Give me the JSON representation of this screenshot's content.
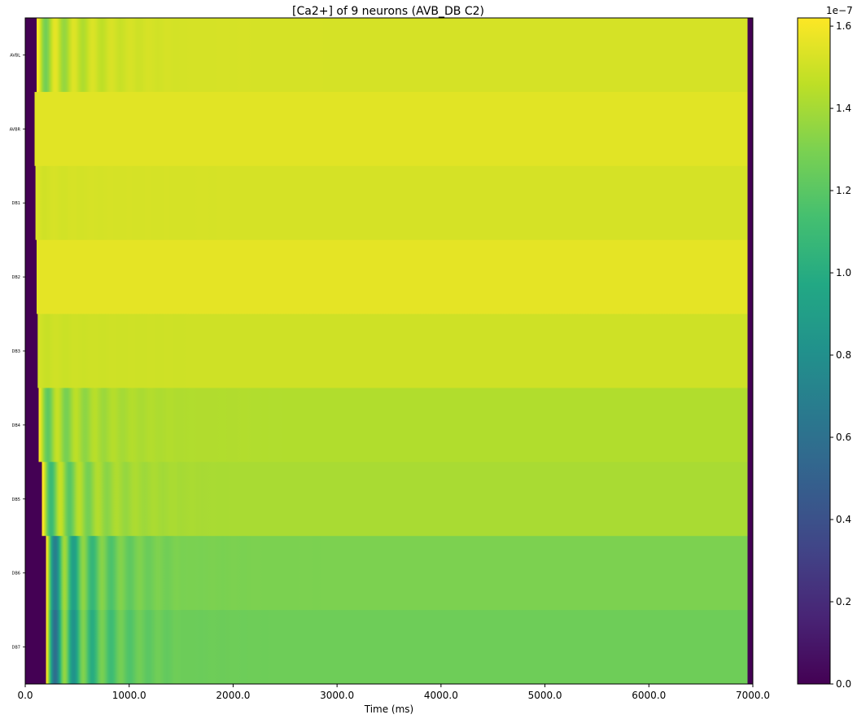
{
  "chart_data": {
    "type": "heatmap",
    "title": "[Ca2+] of 9 neurons (AVB_DB C2)",
    "xlabel": "Time (ms)",
    "ylabel": "",
    "xlim": [
      0,
      7000
    ],
    "x_ticks": [
      0,
      1000,
      2000,
      3000,
      4000,
      5000,
      6000,
      7000
    ],
    "x_tick_labels": [
      "0.0",
      "1000.0",
      "2000.0",
      "3000.0",
      "4000.0",
      "5000.0",
      "6000.0",
      "7000.0"
    ],
    "categories": [
      "AVBL",
      "AVBR",
      "DB1",
      "DB2",
      "DB3",
      "DB4",
      "DB5",
      "DB6",
      "DB7"
    ],
    "colormap": "viridis",
    "colorbar": {
      "range": [
        0.0,
        1.62
      ],
      "exponent_label": "1e−7",
      "ticks": [
        0.0,
        0.2,
        0.4,
        0.6,
        0.8,
        1.0,
        1.2,
        1.4,
        1.6
      ],
      "tick_labels": [
        "0.0",
        "0.2",
        "0.4",
        "0.6",
        "0.8",
        "1.0",
        "1.2",
        "1.4",
        "1.6"
      ]
    },
    "series": [
      {
        "name": "AVBL",
        "onset_ms": 110,
        "steady": 1.52,
        "peak": 1.62,
        "ringing": 0.35
      },
      {
        "name": "AVBR",
        "onset_ms": 90,
        "steady": 1.55,
        "peak": 1.55,
        "ringing": 0.0
      },
      {
        "name": "DB1",
        "onset_ms": 100,
        "steady": 1.52,
        "peak": 1.53,
        "ringing": 0.02
      },
      {
        "name": "DB2",
        "onset_ms": 110,
        "steady": 1.56,
        "peak": 1.56,
        "ringing": 0.0
      },
      {
        "name": "DB3",
        "onset_ms": 120,
        "steady": 1.5,
        "peak": 1.51,
        "ringing": 0.02
      },
      {
        "name": "DB4",
        "onset_ms": 130,
        "steady": 1.43,
        "peak": 1.55,
        "ringing": 0.3
      },
      {
        "name": "DB5",
        "onset_ms": 160,
        "steady": 1.41,
        "peak": 1.58,
        "ringing": 0.45
      },
      {
        "name": "DB6",
        "onset_ms": 200,
        "steady": 1.3,
        "peak": 1.52,
        "ringing": 0.9
      },
      {
        "name": "DB7",
        "onset_ms": 200,
        "steady": 1.26,
        "peak": 1.5,
        "ringing": 1.0
      }
    ],
    "offset_ms": 6950,
    "baseline": 0.0,
    "grid": false
  }
}
